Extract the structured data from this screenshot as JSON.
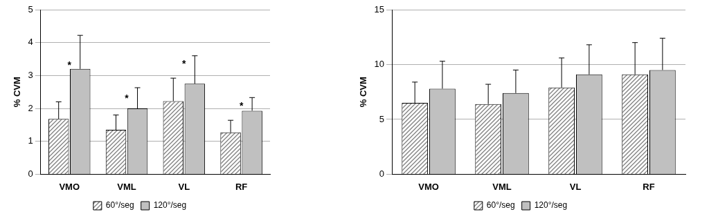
{
  "chart_data": [
    {
      "type": "bar",
      "y_label": "% CVM",
      "categories": [
        "VMO",
        "VML",
        "VL",
        "RF"
      ],
      "series": [
        {
          "name": "60°/seg",
          "color": "#7f7f7f",
          "marker": "hatch",
          "values": [
            1.68,
            1.35,
            2.22,
            1.27
          ],
          "errors": [
            0.52,
            0.45,
            0.7,
            0.37
          ]
        },
        {
          "name": "120°/seg",
          "color": "#c0c0c0",
          "values": [
            3.2,
            2.0,
            2.75,
            1.93
          ],
          "errors": [
            1.02,
            0.63,
            0.85,
            0.4
          ]
        }
      ],
      "annotations": [
        "*",
        "*",
        "*",
        "*"
      ],
      "ylim": [
        0,
        5
      ],
      "yticks": [
        0,
        1,
        2,
        3,
        4,
        5
      ],
      "grid": true,
      "legend": "bottom"
    },
    {
      "type": "bar",
      "y_label": "% CVM",
      "categories": [
        "VMO",
        "VML",
        "VL",
        "RF"
      ],
      "series": [
        {
          "name": "60°/seg",
          "color": "#7f7f7f",
          "marker": "hatch",
          "values": [
            6.5,
            6.4,
            7.9,
            9.1
          ],
          "errors": [
            1.9,
            1.8,
            2.7,
            2.9
          ]
        },
        {
          "name": "120°/seg",
          "color": "#c0c0c0",
          "values": [
            7.8,
            7.4,
            9.1,
            9.5
          ],
          "errors": [
            2.5,
            2.1,
            2.7,
            2.9
          ]
        }
      ],
      "ylim": [
        0,
        15
      ],
      "yticks": [
        0,
        5,
        10,
        15
      ],
      "grid": true,
      "legend": "bottom"
    }
  ]
}
